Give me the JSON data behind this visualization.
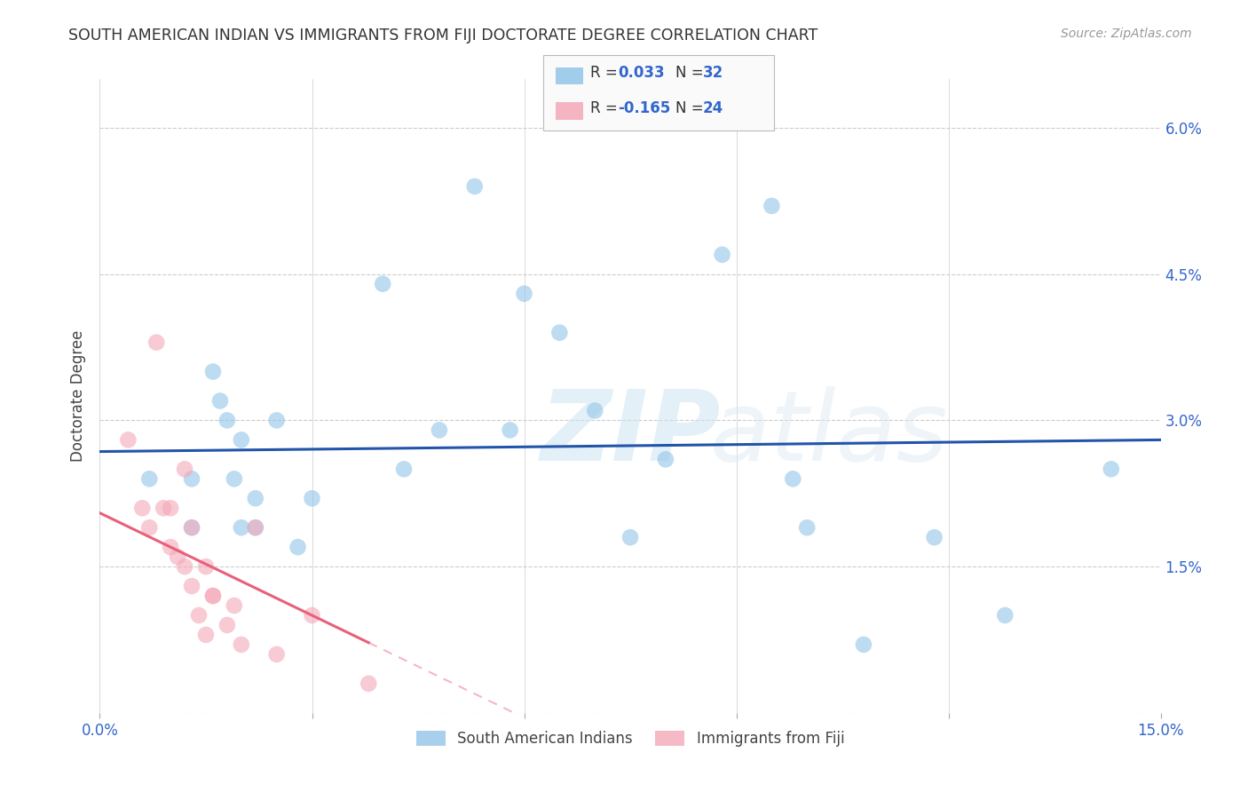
{
  "title": "SOUTH AMERICAN INDIAN VS IMMIGRANTS FROM FIJI DOCTORATE DEGREE CORRELATION CHART",
  "source": "Source: ZipAtlas.com",
  "ylabel": "Doctorate Degree",
  "xlim": [
    0.0,
    0.15
  ],
  "ylim": [
    0.0,
    0.065
  ],
  "xticks": [
    0.0,
    0.03,
    0.06,
    0.09,
    0.12,
    0.15
  ],
  "xticklabels": [
    "0.0%",
    "",
    "",
    "",
    "",
    "15.0%"
  ],
  "yticks": [
    0.0,
    0.015,
    0.03,
    0.045,
    0.06
  ],
  "yticklabels": [
    "",
    "1.5%",
    "3.0%",
    "4.5%",
    "6.0%"
  ],
  "blue_label": "South American Indians",
  "pink_label": "Immigrants from Fiji",
  "blue_r": "0.033",
  "blue_n": "32",
  "pink_r": "-0.165",
  "pink_n": "24",
  "blue_color": "#92c5e8",
  "pink_color": "#f4a8b8",
  "blue_line_color": "#2255aa",
  "pink_line_color": "#e8607a",
  "grid_color": "#cccccc",
  "watermark_zip": "ZIP",
  "watermark_atlas": "atlas",
  "blue_points_x": [
    0.007,
    0.013,
    0.013,
    0.016,
    0.017,
    0.018,
    0.019,
    0.02,
    0.02,
    0.022,
    0.022,
    0.025,
    0.028,
    0.03,
    0.04,
    0.043,
    0.048,
    0.053,
    0.058,
    0.06,
    0.065,
    0.07,
    0.075,
    0.08,
    0.088,
    0.095,
    0.098,
    0.1,
    0.108,
    0.118,
    0.128,
    0.143
  ],
  "blue_points_y": [
    0.024,
    0.024,
    0.019,
    0.035,
    0.032,
    0.03,
    0.024,
    0.019,
    0.028,
    0.019,
    0.022,
    0.03,
    0.017,
    0.022,
    0.044,
    0.025,
    0.029,
    0.054,
    0.029,
    0.043,
    0.039,
    0.031,
    0.018,
    0.026,
    0.047,
    0.052,
    0.024,
    0.019,
    0.007,
    0.018,
    0.01,
    0.025
  ],
  "pink_points_x": [
    0.004,
    0.006,
    0.007,
    0.008,
    0.009,
    0.01,
    0.01,
    0.011,
    0.012,
    0.012,
    0.013,
    0.013,
    0.014,
    0.015,
    0.015,
    0.016,
    0.016,
    0.018,
    0.019,
    0.02,
    0.022,
    0.025,
    0.03,
    0.038
  ],
  "pink_points_y": [
    0.028,
    0.021,
    0.019,
    0.038,
    0.021,
    0.021,
    0.017,
    0.016,
    0.025,
    0.015,
    0.013,
    0.019,
    0.01,
    0.008,
    0.015,
    0.012,
    0.012,
    0.009,
    0.011,
    0.007,
    0.019,
    0.006,
    0.01,
    0.003
  ],
  "background_color": "#ffffff"
}
